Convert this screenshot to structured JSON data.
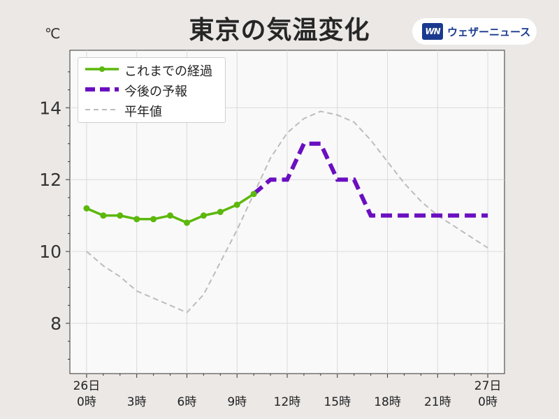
{
  "title": "東京の気温変化",
  "unit_label": "℃",
  "brand": {
    "mark": "WN",
    "name": "ウェザーニュース"
  },
  "colors": {
    "observed": "#5cb80c",
    "forecast": "#6a0fc0",
    "normal": "#bcbcbc",
    "plot_bg": "#faf9fa",
    "grid": "#dadada"
  },
  "chart_data": {
    "type": "line",
    "title": "東京の気温変化",
    "xlabel": "",
    "ylabel": "℃",
    "xlim": [
      -1,
      25
    ],
    "ylim": [
      6.6,
      15.6
    ],
    "y_ticks": [
      8,
      10,
      12,
      14
    ],
    "x_ticks": [
      {
        "x": 0,
        "line1": "26日",
        "line2": "0時"
      },
      {
        "x": 3,
        "line1": "",
        "line2": "3時"
      },
      {
        "x": 6,
        "line1": "",
        "line2": "6時"
      },
      {
        "x": 9,
        "line1": "",
        "line2": "9時"
      },
      {
        "x": 12,
        "line1": "",
        "line2": "12時"
      },
      {
        "x": 15,
        "line1": "",
        "line2": "15時"
      },
      {
        "x": 18,
        "line1": "",
        "line2": "18時"
      },
      {
        "x": 21,
        "line1": "",
        "line2": "21時"
      },
      {
        "x": 24,
        "line1": "27日",
        "line2": "0時"
      }
    ],
    "grid": true,
    "legend_position": "top-left",
    "series": [
      {
        "name": "これまでの経過",
        "style": "solid-markers",
        "x": [
          0,
          1,
          2,
          3,
          4,
          5,
          6,
          7,
          8,
          9,
          10
        ],
        "y": [
          11.2,
          11.0,
          11.0,
          10.9,
          10.9,
          11.0,
          10.8,
          11.0,
          11.1,
          11.3,
          11.6
        ]
      },
      {
        "name": "今後の予報",
        "style": "thick-dashed",
        "x": [
          10,
          11,
          12,
          13,
          14,
          15,
          16,
          17,
          18,
          19,
          20,
          21,
          22,
          23,
          24
        ],
        "y": [
          11.6,
          12.0,
          12.0,
          13.0,
          13.0,
          12.0,
          12.0,
          11.0,
          11.0,
          11.0,
          11.0,
          11.0,
          11.0,
          11.0,
          11.0
        ]
      },
      {
        "name": "平年値",
        "style": "thin-dashed",
        "x": [
          0,
          1,
          2,
          3,
          4,
          5,
          6,
          7,
          8,
          9,
          10,
          11,
          12,
          13,
          14,
          15,
          16,
          17,
          18,
          19,
          20,
          21,
          22,
          23,
          24
        ],
        "y": [
          10.0,
          9.6,
          9.3,
          8.9,
          8.7,
          8.5,
          8.3,
          8.8,
          9.7,
          10.6,
          11.6,
          12.6,
          13.3,
          13.7,
          13.9,
          13.8,
          13.6,
          13.1,
          12.5,
          11.9,
          11.4,
          11.0,
          10.7,
          10.4,
          10.1
        ]
      }
    ]
  }
}
